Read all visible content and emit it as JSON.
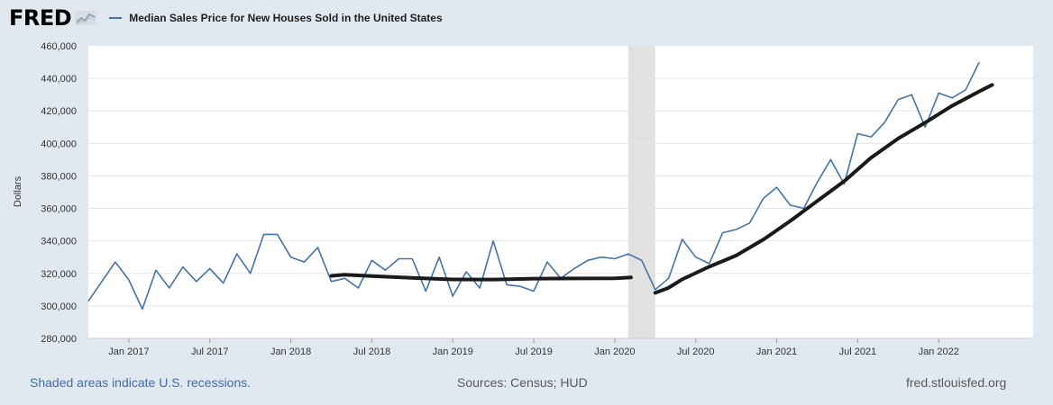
{
  "header": {
    "logo_text": "FRED",
    "logo_icon": "chart-line-icon",
    "legend_label": "Median Sales Price for New Houses Sold in the United States"
  },
  "footer": {
    "recession_note": "Shaded areas indicate U.S. recessions.",
    "sources": "Sources: Census; HUD",
    "site": "fred.stlouisfed.org"
  },
  "colors": {
    "background": "#e1e9f0",
    "series": "#4572a7",
    "trend": "#1a1a1a",
    "recession": "#e1e1e1",
    "grid": "#e6e6e6",
    "footer_link": "#3f6bab"
  },
  "chart_data": {
    "type": "line",
    "title": "Median Sales Price for New Houses Sold in the United States",
    "xlabel": "",
    "ylabel": "Dollars",
    "x_range": [
      2016.75,
      2022.5833
    ],
    "ylim": [
      280000,
      460000
    ],
    "y_ticks": [
      280000,
      300000,
      320000,
      340000,
      360000,
      380000,
      400000,
      420000,
      440000,
      460000
    ],
    "y_tick_labels": [
      "280,000",
      "300,000",
      "320,000",
      "340,000",
      "360,000",
      "380,000",
      "400,000",
      "420,000",
      "440,000",
      "460,000"
    ],
    "x_ticks": [
      2017.0,
      2017.5,
      2018.0,
      2018.5,
      2019.0,
      2019.5,
      2020.0,
      2020.5,
      2021.0,
      2021.5,
      2022.0
    ],
    "x_tick_labels": [
      "Jan 2017",
      "Jul 2017",
      "Jan 2018",
      "Jul 2018",
      "Jan 2019",
      "Jul 2019",
      "Jan 2020",
      "Jul 2020",
      "Jan 2021",
      "Jul 2021",
      "Jan 2022"
    ],
    "grid": true,
    "recessions": [
      {
        "start": 2020.0833,
        "end": 2020.25
      }
    ],
    "series": [
      {
        "name": "Median Sales Price for New Houses Sold in the United States",
        "color": "#4572a7",
        "x_start": 2016.75,
        "x_step": 0.08333,
        "values": [
          303000,
          315000,
          327000,
          316000,
          298000,
          322000,
          311000,
          324000,
          315000,
          323000,
          314000,
          332000,
          320000,
          344000,
          344000,
          330000,
          327000,
          336000,
          315000,
          317000,
          311000,
          328000,
          322000,
          329000,
          329000,
          309000,
          330000,
          306000,
          321000,
          311000,
          340000,
          313000,
          312000,
          309000,
          327000,
          317000,
          323000,
          328000,
          330000,
          329000,
          332000,
          328000,
          310000,
          317000,
          341000,
          330000,
          326000,
          345000,
          347000,
          351000,
          366000,
          373000,
          362000,
          360000,
          376000,
          390000,
          375000,
          406000,
          404000,
          413000,
          427000,
          430000,
          410000,
          431000,
          428000,
          433000,
          450000
        ]
      }
    ],
    "annotations": [
      {
        "name": "pre-2020 trend line (hand-drawn)",
        "color": "#1a1a1a",
        "points": [
          [
            2018.25,
            318500
          ],
          [
            2018.33,
            319200
          ],
          [
            2018.5,
            318300
          ],
          [
            2018.75,
            317200
          ],
          [
            2019.0,
            316300
          ],
          [
            2019.25,
            316200
          ],
          [
            2019.5,
            316800
          ],
          [
            2019.75,
            316900
          ],
          [
            2020.0,
            317000
          ],
          [
            2020.1,
            317500
          ]
        ]
      },
      {
        "name": "post-2020 trend line (hand-drawn)",
        "color": "#1a1a1a",
        "points": [
          [
            2020.25,
            308000
          ],
          [
            2020.33,
            311000
          ],
          [
            2020.42,
            316500
          ],
          [
            2020.58,
            324000
          ],
          [
            2020.75,
            331000
          ],
          [
            2020.92,
            341000
          ],
          [
            2021.08,
            352000
          ],
          [
            2021.25,
            364500
          ],
          [
            2021.42,
            377000
          ],
          [
            2021.58,
            391000
          ],
          [
            2021.75,
            403000
          ],
          [
            2021.92,
            413000
          ],
          [
            2022.08,
            423000
          ],
          [
            2022.25,
            432000
          ],
          [
            2022.33,
            436000
          ]
        ]
      }
    ]
  }
}
